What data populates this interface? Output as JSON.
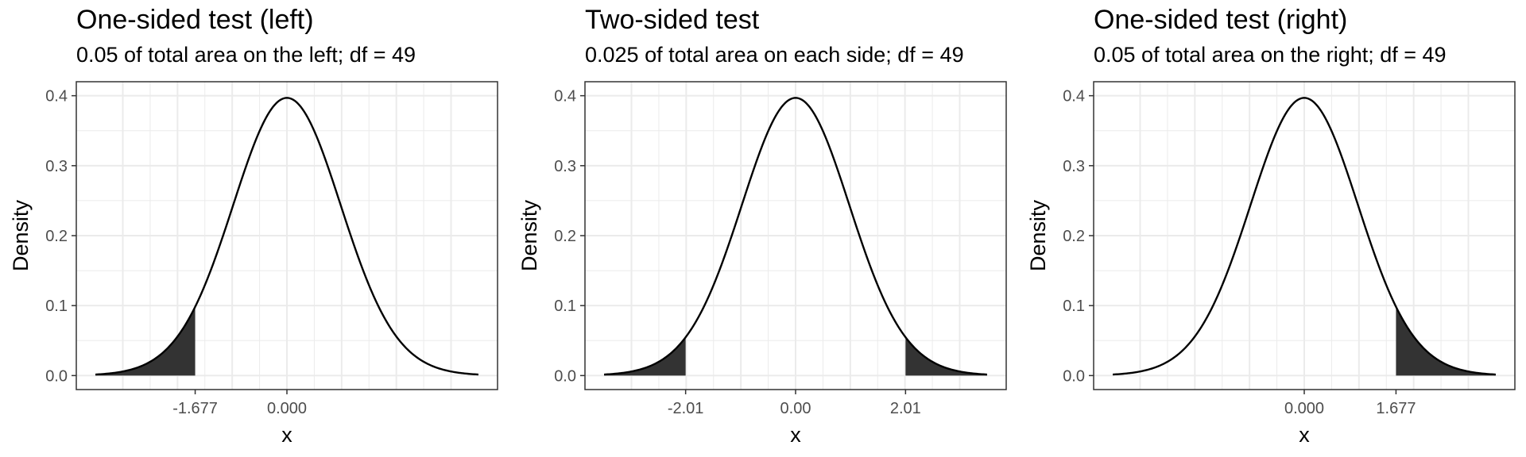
{
  "chart_data": [
    {
      "type": "area",
      "title": "One-sided test (left)",
      "subtitle": "0.05 of total area on the left; df = 49",
      "xlabel": "x",
      "ylabel": "Density",
      "distribution": "t",
      "df": 49,
      "xlim": [
        -3.5,
        3.5
      ],
      "ylim": [
        0,
        0.4
      ],
      "yticks": [
        0.0,
        0.1,
        0.2,
        0.3,
        0.4
      ],
      "ytick_labels": [
        "0.0",
        "0.1",
        "0.2",
        "0.3",
        "0.4"
      ],
      "xticks": [
        -1.677,
        0.0
      ],
      "xtick_labels": [
        "-1.677",
        "0.000"
      ],
      "shaded_regions": [
        {
          "from": -3.5,
          "to": -1.677
        }
      ],
      "grid": true
    },
    {
      "type": "area",
      "title": "Two-sided test",
      "subtitle": "0.025 of total area on each side; df = 49",
      "xlabel": "x",
      "ylabel": "Density",
      "distribution": "t",
      "df": 49,
      "xlim": [
        -3.5,
        3.5
      ],
      "ylim": [
        0,
        0.4
      ],
      "yticks": [
        0.0,
        0.1,
        0.2,
        0.3,
        0.4
      ],
      "ytick_labels": [
        "0.0",
        "0.1",
        "0.2",
        "0.3",
        "0.4"
      ],
      "xticks": [
        -2.01,
        0.0,
        2.01
      ],
      "xtick_labels": [
        "-2.01",
        "0.00",
        "2.01"
      ],
      "shaded_regions": [
        {
          "from": -3.5,
          "to": -2.01
        },
        {
          "from": 2.01,
          "to": 3.5
        }
      ],
      "grid": true
    },
    {
      "type": "area",
      "title": "One-sided test (right)",
      "subtitle": "0.05 of total area on the right; df = 49",
      "xlabel": "x",
      "ylabel": "Density",
      "distribution": "t",
      "df": 49,
      "xlim": [
        -3.5,
        3.5
      ],
      "ylim": [
        0,
        0.4
      ],
      "yticks": [
        0.0,
        0.1,
        0.2,
        0.3,
        0.4
      ],
      "ytick_labels": [
        "0.0",
        "0.1",
        "0.2",
        "0.3",
        "0.4"
      ],
      "xticks": [
        0.0,
        1.677
      ],
      "xtick_labels": [
        "0.000",
        "1.677"
      ],
      "shaded_regions": [
        {
          "from": 1.677,
          "to": 3.5
        }
      ],
      "grid": true
    }
  ],
  "colors": {
    "curve": "#000000",
    "shade": "#333333",
    "grid": "#ebebeb",
    "panel_border": "#333333",
    "tick_text": "#4d4d4d"
  }
}
